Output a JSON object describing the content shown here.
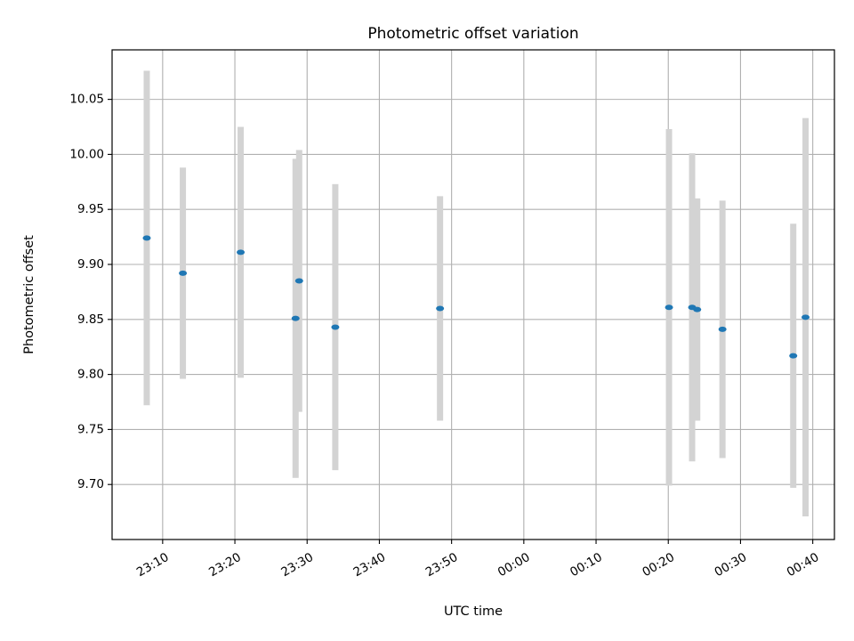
{
  "chart_data": {
    "type": "scatter",
    "title": "Photometric offset variation",
    "xlabel": "UTC time",
    "ylabel": "Photometric offset",
    "grid": true,
    "xlim": [
      "23:03:00",
      "00:43:00"
    ],
    "ylim": [
      9.65,
      10.095
    ],
    "x_ticks": [
      "23:10",
      "23:20",
      "23:30",
      "23:40",
      "23:50",
      "00:00",
      "00:10",
      "00:20",
      "00:30",
      "00:40"
    ],
    "y_ticks": [
      "9.70",
      "9.75",
      "9.80",
      "9.85",
      "9.90",
      "9.95",
      "10.00",
      "10.05"
    ],
    "colors": {
      "point": "#1f77b4",
      "errorbar": "#d3d3d3",
      "grid": "#b0b0b0"
    },
    "points": [
      {
        "x": "23:07:48",
        "y": 9.924,
        "err": 0.152
      },
      {
        "x": "23:12:48",
        "y": 9.892,
        "err": 0.096
      },
      {
        "x": "23:20:48",
        "y": 9.911,
        "err": 0.114
      },
      {
        "x": "23:28:24",
        "y": 9.851,
        "err": 0.145
      },
      {
        "x": "23:28:54",
        "y": 9.885,
        "err": 0.119
      },
      {
        "x": "23:33:54",
        "y": 9.843,
        "err": 0.13
      },
      {
        "x": "23:48:24",
        "y": 9.86,
        "err": 0.102
      },
      {
        "x": "00:20:06",
        "y": 9.861,
        "err": 0.162
      },
      {
        "x": "00:23:18",
        "y": 9.861,
        "err": 0.14
      },
      {
        "x": "00:24:00",
        "y": 9.859,
        "err": 0.101
      },
      {
        "x": "00:27:30",
        "y": 9.841,
        "err": 0.117
      },
      {
        "x": "00:37:18",
        "y": 9.817,
        "err": 0.12
      },
      {
        "x": "00:39:00",
        "y": 9.852,
        "err": 0.181
      }
    ]
  }
}
